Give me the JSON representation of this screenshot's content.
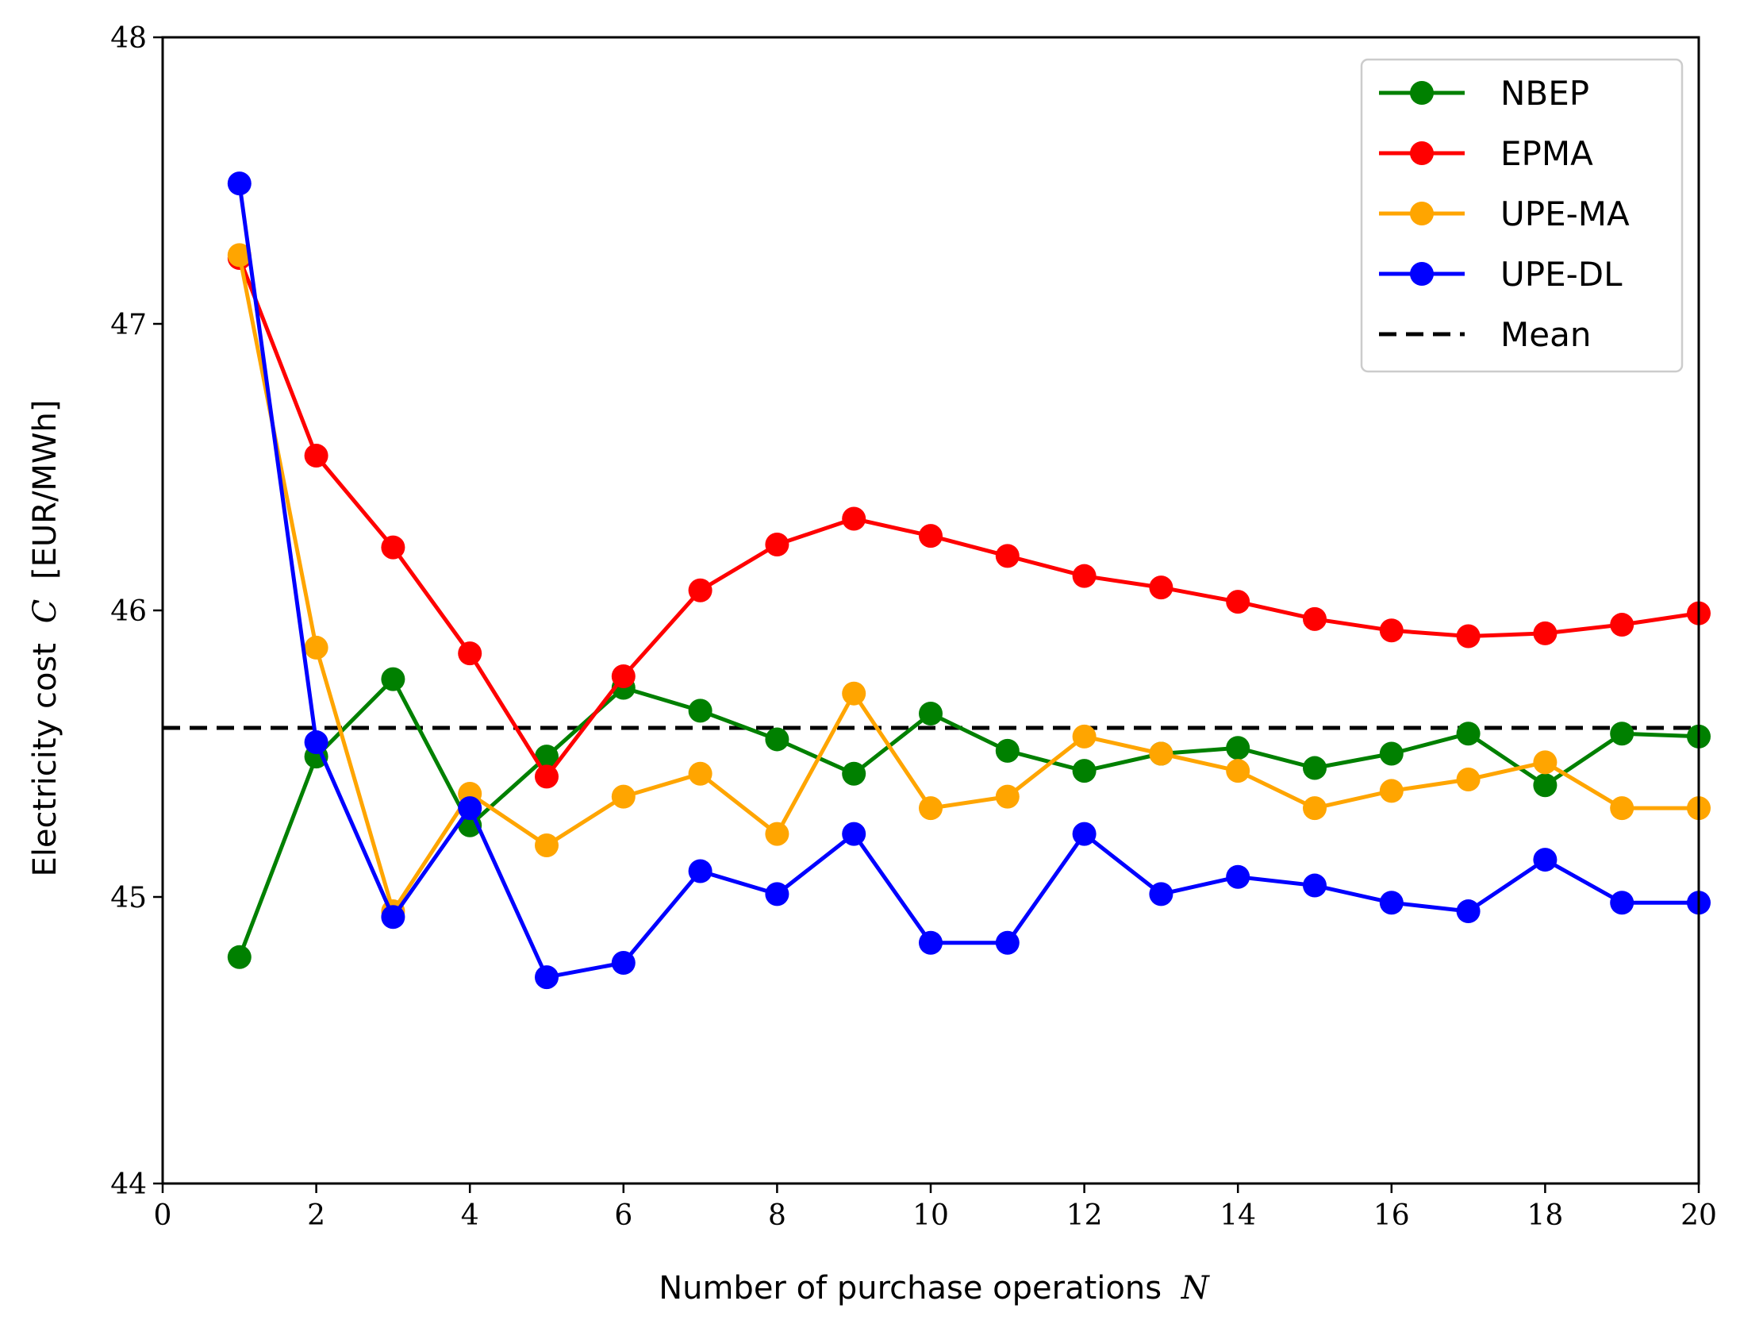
{
  "chart_data": {
    "type": "line",
    "title": "",
    "xlabel": "Number of purchase operations",
    "xlabel_var": "N",
    "ylabel": "Electricity cost",
    "ylabel_var": "C",
    "ylabel_unit": "[EUR/MWh]",
    "xlim": [
      0,
      20
    ],
    "ylim": [
      44,
      48
    ],
    "xticks": [
      0,
      2,
      4,
      6,
      8,
      10,
      12,
      14,
      16,
      18,
      20
    ],
    "yticks": [
      44,
      45,
      46,
      47,
      48
    ],
    "grid": false,
    "legend_position": "top-right",
    "x": [
      1,
      2,
      3,
      4,
      5,
      6,
      7,
      8,
      9,
      10,
      11,
      12,
      13,
      14,
      15,
      16,
      17,
      18,
      19,
      20
    ],
    "series": [
      {
        "name": "NBEP",
        "color": "#008000",
        "values": [
          44.79,
          45.49,
          45.76,
          45.25,
          45.49,
          45.73,
          45.65,
          45.55,
          45.43,
          45.64,
          45.51,
          45.44,
          45.5,
          45.52,
          45.45,
          45.5,
          45.57,
          45.39,
          45.57,
          45.56
        ]
      },
      {
        "name": "EPMA",
        "color": "#ff0000",
        "values": [
          47.23,
          46.54,
          46.22,
          45.85,
          45.42,
          45.77,
          46.07,
          46.23,
          46.32,
          46.26,
          46.19,
          46.12,
          46.08,
          46.03,
          45.97,
          45.93,
          45.91,
          45.92,
          45.95,
          45.99
        ]
      },
      {
        "name": "UPE-MA",
        "color": "#ffa500",
        "values": [
          47.24,
          45.87,
          44.95,
          45.36,
          45.18,
          45.35,
          45.43,
          45.22,
          45.71,
          45.31,
          45.35,
          45.56,
          45.5,
          45.44,
          45.31,
          45.37,
          45.41,
          45.47,
          45.31,
          45.31
        ]
      },
      {
        "name": "UPE-DL",
        "color": "#0000ff",
        "values": [
          47.49,
          45.54,
          44.93,
          45.31,
          44.72,
          44.77,
          45.09,
          45.01,
          45.22,
          44.84,
          44.84,
          45.22,
          45.01,
          45.07,
          45.04,
          44.98,
          44.95,
          45.13,
          44.98,
          44.98
        ]
      }
    ],
    "reference_lines": [
      {
        "name": "Mean",
        "value": 45.59,
        "color": "#000000",
        "style": "dashed"
      }
    ]
  }
}
